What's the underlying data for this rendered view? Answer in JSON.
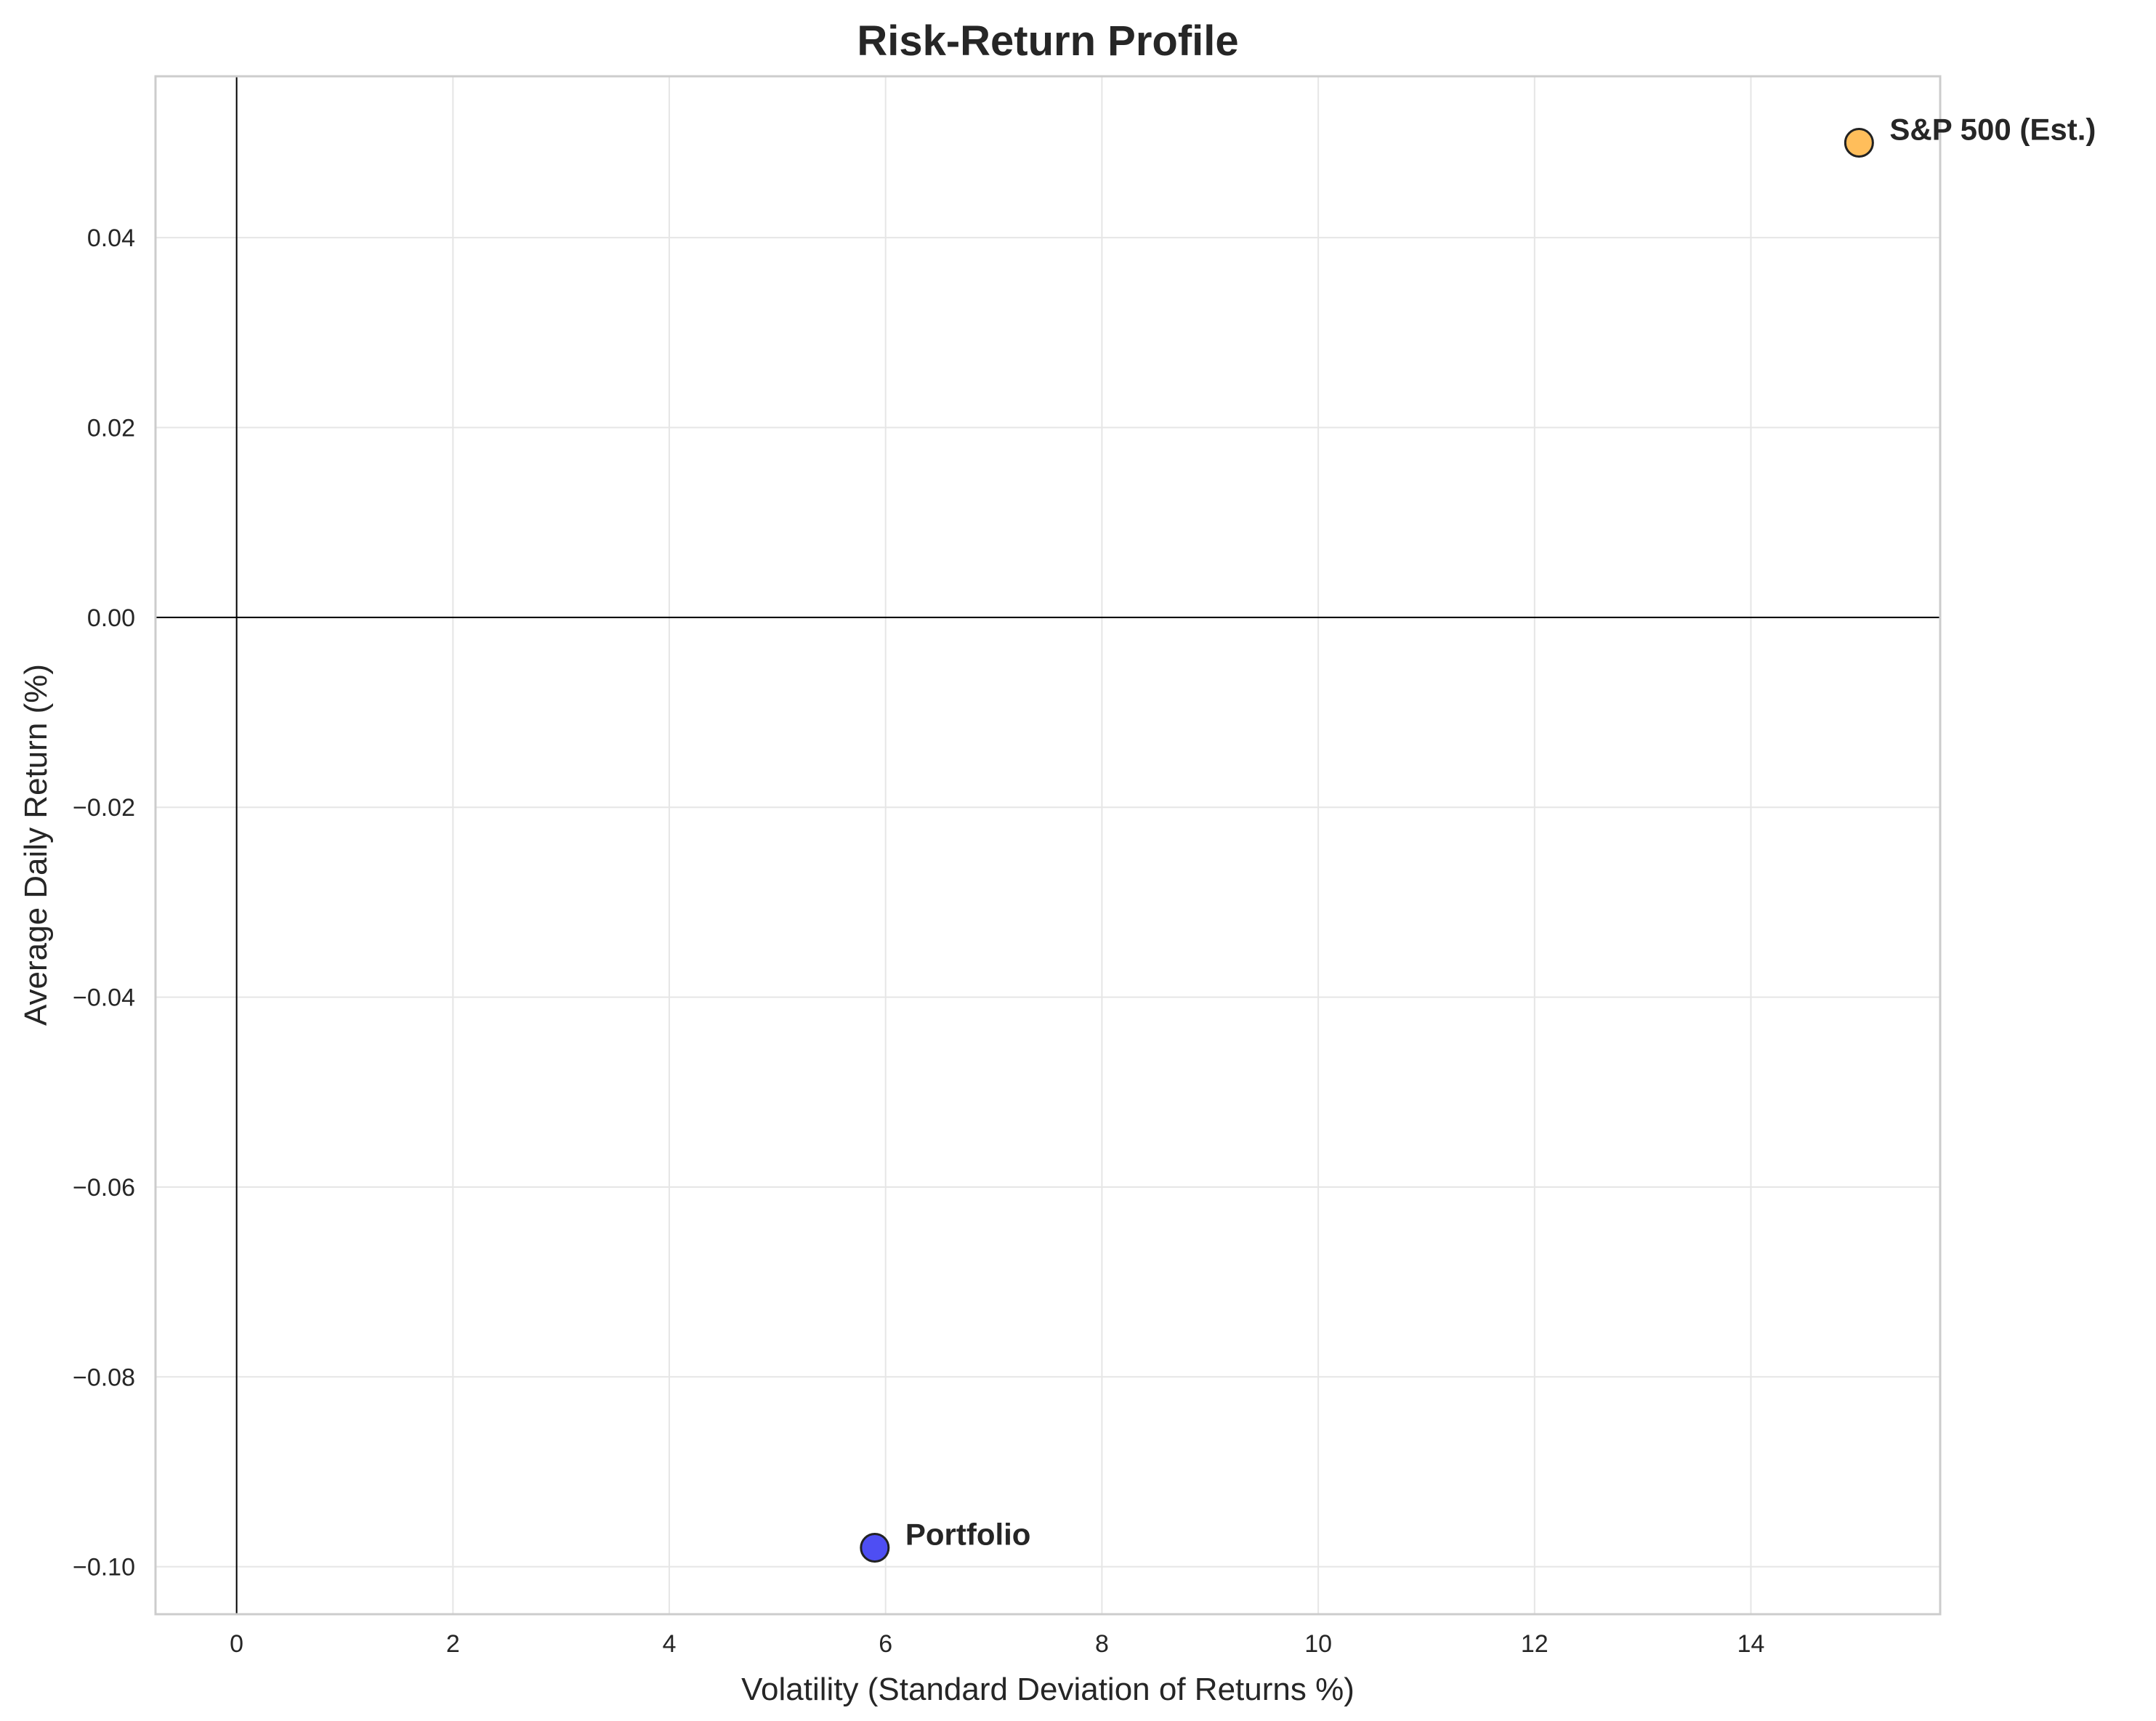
{
  "chart_data": {
    "type": "scatter",
    "title": "Risk-Return Profile",
    "xlabel": "Volatility (Standard Deviation of Returns %)",
    "ylabel": "Average Daily Return (%)",
    "xlim": [
      -0.75,
      15.75
    ],
    "ylim": [
      -0.105,
      0.057
    ],
    "xticks": [
      0,
      2,
      4,
      6,
      8,
      10,
      12,
      14
    ],
    "yticks": [
      0.04,
      0.02,
      0.0,
      -0.02,
      -0.04,
      -0.06,
      -0.08,
      -0.1
    ],
    "xtick_labels": [
      "0",
      "2",
      "4",
      "6",
      "8",
      "10",
      "12",
      "14"
    ],
    "ytick_labels": [
      "0.04",
      "0.02",
      "0.00",
      "−0.02",
      "−0.04",
      "−0.06",
      "−0.08",
      "−0.10"
    ],
    "grid": true,
    "reference_lines": {
      "horizontal_y": 0,
      "vertical_x": 0
    },
    "points": [
      {
        "label": "Portfolio",
        "x": 5.9,
        "y": -0.098,
        "color": "#3f3ff2"
      },
      {
        "label": "S&P 500 (Est.)",
        "x": 15.0,
        "y": 0.05,
        "color": "#ffb84d"
      }
    ]
  }
}
